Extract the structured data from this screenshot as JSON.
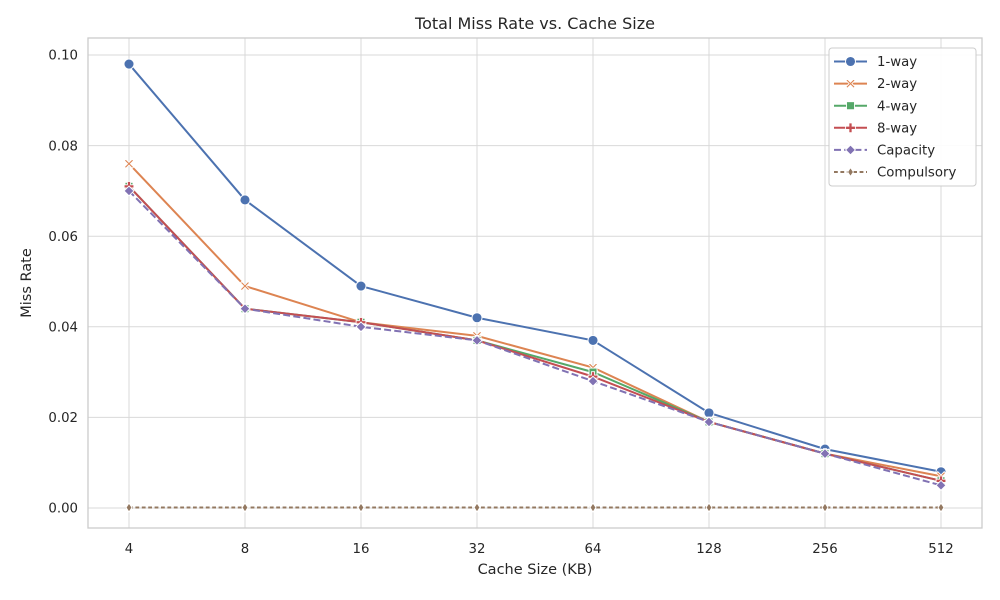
{
  "chart_data": {
    "type": "line",
    "title": "Total Miss Rate vs. Cache Size",
    "xlabel": "Cache Size (KB)",
    "ylabel": "Miss Rate",
    "x": [
      4,
      8,
      16,
      32,
      64,
      128,
      256,
      512
    ],
    "x_tick_labels": [
      "4",
      "8",
      "16",
      "32",
      "64",
      "128",
      "256",
      "512"
    ],
    "y_ticks": [
      0.0,
      0.02,
      0.04,
      0.06,
      0.08,
      0.1
    ],
    "y_tick_labels": [
      "0.00",
      "0.02",
      "0.04",
      "0.06",
      "0.08",
      "0.10"
    ],
    "ylim": [
      -0.0044,
      0.1038
    ],
    "grid": true,
    "legend_position": "upper right",
    "colors": {
      "grid": "#d9d9d9",
      "spine": "#cbcbcb",
      "text": "#262626",
      "legend_border": "#cccccc"
    },
    "series": [
      {
        "name": "1-way",
        "color": "#4C72B0",
        "marker": "circle",
        "line_style": "solid",
        "dash_pattern": null,
        "values": [
          0.098,
          0.068,
          0.049,
          0.042,
          0.037,
          0.021,
          0.013,
          0.008
        ]
      },
      {
        "name": "2-way",
        "color": "#DD8452",
        "marker": "x",
        "line_style": "solid",
        "dash_pattern": null,
        "values": [
          0.076,
          0.049,
          0.041,
          0.038,
          0.031,
          0.019,
          0.012,
          0.007
        ]
      },
      {
        "name": "4-way",
        "color": "#55A868",
        "marker": "square",
        "line_style": "solid",
        "dash_pattern": null,
        "values": [
          0.071,
          0.044,
          0.041,
          0.037,
          0.03,
          0.019,
          0.012,
          0.006
        ]
      },
      {
        "name": "8-way",
        "color": "#C44E52",
        "marker": "plus",
        "line_style": "solid",
        "dash_pattern": null,
        "values": [
          0.071,
          0.044,
          0.041,
          0.037,
          0.029,
          0.019,
          0.012,
          0.006
        ]
      },
      {
        "name": "Capacity",
        "color": "#8172B3",
        "marker": "diamond",
        "line_style": "dashed",
        "dash_pattern": "7 3.2",
        "values": [
          0.07,
          0.044,
          0.04,
          0.037,
          0.028,
          0.019,
          0.012,
          0.005
        ]
      },
      {
        "name": "Compulsory",
        "color": "#937860",
        "marker": "thin-diamond",
        "line_style": "dashed",
        "dash_pattern": "3.8 2.6",
        "values": [
          0.0001,
          0.0001,
          0.0001,
          0.0001,
          0.0001,
          0.0001,
          0.0001,
          0.0001
        ]
      }
    ]
  }
}
